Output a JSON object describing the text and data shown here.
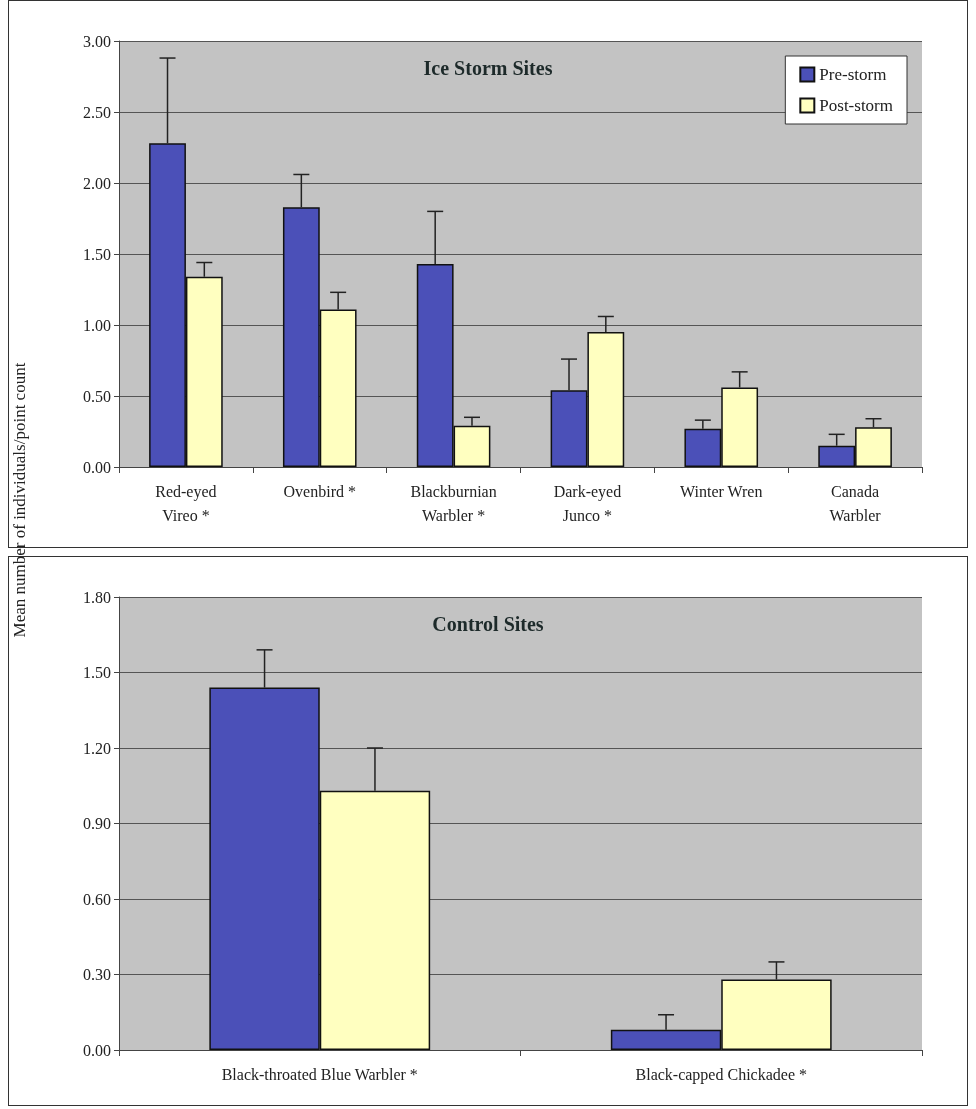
{
  "chart_data": [
    {
      "type": "bar",
      "title": "Ice Storm Sites",
      "ylabel": "Mean number of individuals/point count",
      "categories": [
        "Red-eyed\nVireo *",
        "Ovenbird *",
        "Blackburnian\nWarbler *",
        "Dark-eyed\nJunco *",
        "Winter Wren",
        "Canada\nWarbler"
      ],
      "series": [
        {
          "name": "Pre-storm",
          "color": "#4b50b8",
          "values": [
            2.28,
            1.83,
            1.43,
            0.54,
            0.27,
            0.15
          ],
          "errors": [
            0.6,
            0.23,
            0.37,
            0.22,
            0.06,
            0.08
          ]
        },
        {
          "name": "Post-storm",
          "color": "#ffffc0",
          "values": [
            1.34,
            1.11,
            0.29,
            0.95,
            0.56,
            0.28
          ],
          "errors": [
            0.1,
            0.12,
            0.06,
            0.11,
            0.11,
            0.06
          ]
        }
      ],
      "ylim": [
        0,
        3
      ],
      "yticks": [
        {
          "value": 0,
          "label": "0.00"
        },
        {
          "value": 0.5,
          "label": "0.50"
        },
        {
          "value": 1,
          "label": "1.00"
        },
        {
          "value": 1.5,
          "label": "1.50"
        },
        {
          "value": 2,
          "label": "2.00"
        },
        {
          "value": 2.5,
          "label": "2.50"
        },
        {
          "value": 3,
          "label": "3.00"
        }
      ],
      "grid": "y",
      "legend": "top right"
    },
    {
      "type": "bar",
      "title": "Control Sites",
      "categories": [
        "Black-throated Blue Warbler *",
        "Black-capped Chickadee *"
      ],
      "series": [
        {
          "color": "#4b50b8",
          "values": [
            1.44,
            0.08
          ],
          "errors": [
            0.15,
            0.06
          ]
        },
        {
          "color": "#ffffc0",
          "values": [
            1.03,
            0.28
          ],
          "errors": [
            0.17,
            0.07
          ]
        }
      ],
      "ylim": [
        0,
        1.8
      ],
      "yticks": [
        {
          "value": 0,
          "label": "0.00"
        },
        {
          "value": 0.3,
          "label": "0.30"
        },
        {
          "value": 0.6,
          "label": "0.60"
        },
        {
          "value": 0.9,
          "label": "0.90"
        },
        {
          "value": 1.2,
          "label": "1.20"
        },
        {
          "value": 1.5,
          "label": "1.50"
        },
        {
          "value": 1.8,
          "label": "1.80"
        }
      ],
      "grid": "y",
      "legend": false
    }
  ]
}
